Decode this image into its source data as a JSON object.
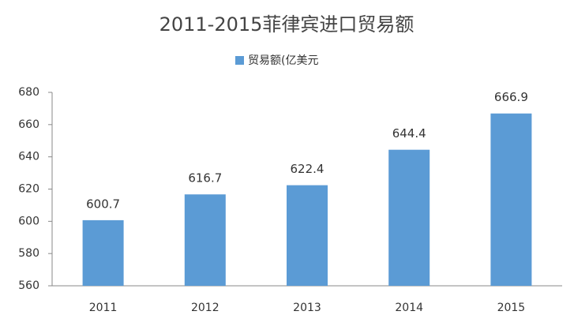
{
  "chart_data": {
    "type": "bar",
    "title": "2011-2015菲律宾进口贸易额",
    "categories": [
      "2011",
      "2012",
      "2013",
      "2014",
      "2015"
    ],
    "series": [
      {
        "name": "贸易额(亿美元",
        "color": "#5b9bd5",
        "values": [
          600.7,
          616.7,
          622.4,
          644.4,
          666.9
        ]
      }
    ],
    "ylim": [
      560,
      680
    ],
    "yticks": [
      560,
      580,
      600,
      620,
      640,
      660,
      680
    ],
    "legend": "top",
    "grid": false
  }
}
